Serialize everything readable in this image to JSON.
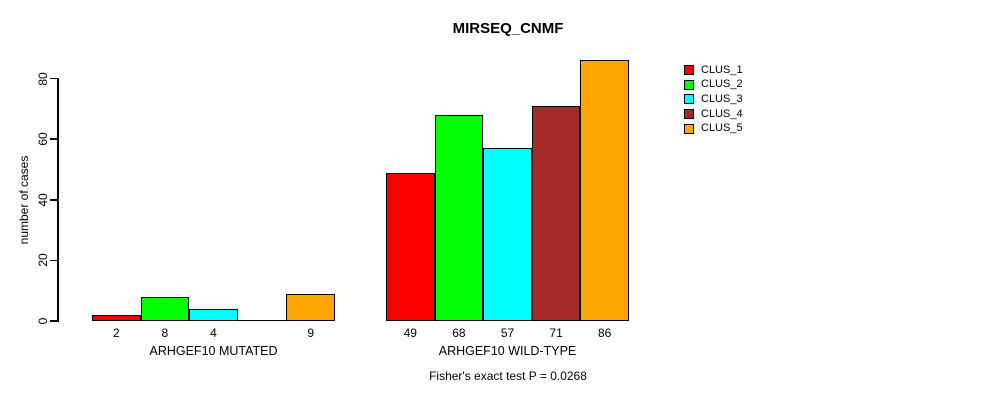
{
  "title": "MIRSEQ_CNMF",
  "y_axis": {
    "label": "number of cases",
    "ticks": [
      0,
      20,
      40,
      60,
      80
    ]
  },
  "footer": "Fisher's exact test P = 0.0268",
  "chart_data": {
    "type": "bar",
    "title": "MIRSEQ_CNMF",
    "xlabel": "",
    "ylabel": "number of cases",
    "ylim": [
      0,
      86
    ],
    "yticks": [
      0,
      20,
      40,
      60,
      80
    ],
    "grid": false,
    "legend_position": "right",
    "grouped": true,
    "categories": [
      "ARHGEF10 MUTATED",
      "ARHGEF10 WILD-TYPE"
    ],
    "series": [
      {
        "name": "CLUS_1",
        "color": "#FF0000",
        "values": [
          2,
          49
        ]
      },
      {
        "name": "CLUS_2",
        "color": "#00FF00",
        "values": [
          8,
          68
        ]
      },
      {
        "name": "CLUS_3",
        "color": "#00FFFF",
        "values": [
          4,
          57
        ]
      },
      {
        "name": "CLUS_4",
        "color": "#A52A2A",
        "values": [
          0,
          71
        ]
      },
      {
        "name": "CLUS_5",
        "color": "#FFA500",
        "values": [
          9,
          86
        ]
      }
    ],
    "bar_value_labels": true,
    "zero_value_labels_hidden": true,
    "annotation": "Fisher's exact test P = 0.0268"
  }
}
